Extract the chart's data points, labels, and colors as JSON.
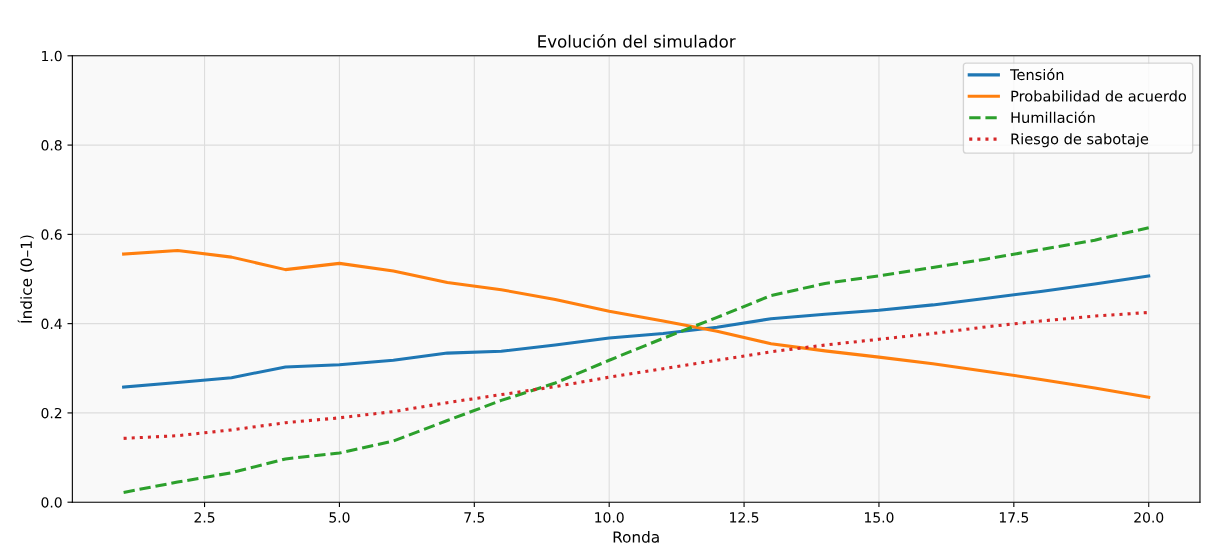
{
  "chart_data": {
    "type": "line",
    "title": "Evolución del simulador",
    "xlabel": "Ronda",
    "ylabel": "Índice (0–1)",
    "x": [
      1,
      2,
      3,
      4,
      5,
      6,
      7,
      8,
      9,
      10,
      11,
      12,
      13,
      14,
      15,
      16,
      17,
      18,
      19,
      20
    ],
    "series": [
      {
        "name": "Tensión",
        "color": "#1f77b4",
        "line_style": "solid",
        "values": [
          0.258,
          0.268,
          0.279,
          0.303,
          0.308,
          0.318,
          0.334,
          0.338,
          0.352,
          0.368,
          0.378,
          0.392,
          0.411,
          0.421,
          0.43,
          0.442,
          0.457,
          0.472,
          0.489,
          0.507
        ]
      },
      {
        "name": "Probabilidad de acuerdo",
        "color": "#ff7f0e",
        "line_style": "solid",
        "values": [
          0.556,
          0.564,
          0.549,
          0.521,
          0.535,
          0.518,
          0.492,
          0.476,
          0.454,
          0.428,
          0.406,
          0.383,
          0.355,
          0.339,
          0.325,
          0.31,
          0.293,
          0.275,
          0.256,
          0.235
        ]
      },
      {
        "name": "Humillación",
        "color": "#2ca02c",
        "line_style": "dashed",
        "values": [
          0.022,
          0.045,
          0.066,
          0.097,
          0.11,
          0.137,
          0.183,
          0.228,
          0.267,
          0.318,
          0.367,
          0.414,
          0.463,
          0.49,
          0.507,
          0.526,
          0.545,
          0.566,
          0.587,
          0.615
        ]
      },
      {
        "name": "Riesgo de sabotaje",
        "color": "#d62728",
        "line_style": "dotted",
        "values": [
          0.143,
          0.149,
          0.162,
          0.178,
          0.189,
          0.203,
          0.223,
          0.241,
          0.259,
          0.28,
          0.299,
          0.318,
          0.337,
          0.352,
          0.365,
          0.378,
          0.393,
          0.406,
          0.417,
          0.425
        ]
      }
    ],
    "xlim": [
      0.05,
      20.95
    ],
    "xticks": [
      {
        "value": 2.5,
        "label": "2.5"
      },
      {
        "value": 5,
        "label": "5.0"
      },
      {
        "value": 7.5,
        "label": "7.5"
      },
      {
        "value": 10,
        "label": "10.0"
      },
      {
        "value": 12.5,
        "label": "12.5"
      },
      {
        "value": 15,
        "label": "15.0"
      },
      {
        "value": 17.5,
        "label": "17.5"
      },
      {
        "value": 20,
        "label": "20.0"
      }
    ],
    "ylim": [
      0,
      1
    ],
    "yticks": [
      {
        "value": 0,
        "label": "0.0"
      },
      {
        "value": 0.2,
        "label": "0.2"
      },
      {
        "value": 0.4,
        "label": "0.4"
      },
      {
        "value": 0.6,
        "label": "0.6"
      },
      {
        "value": 0.8,
        "label": "0.8"
      },
      {
        "value": 1,
        "label": "1.0"
      }
    ],
    "grid": true,
    "legend": "top right"
  }
}
